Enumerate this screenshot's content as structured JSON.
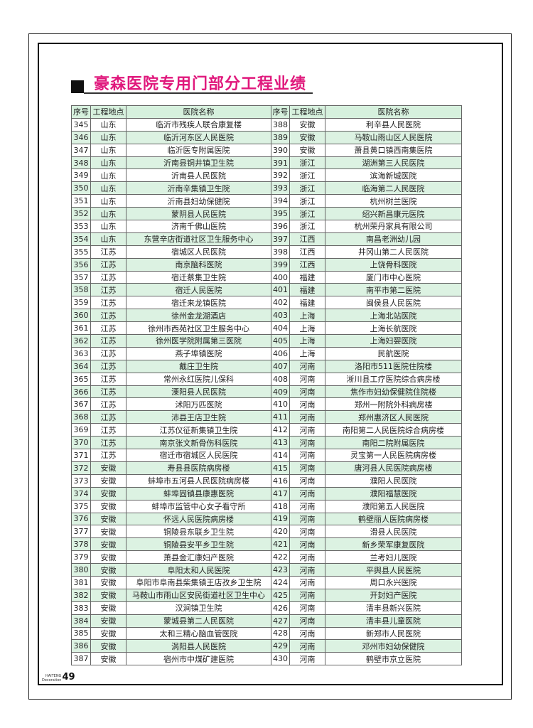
{
  "title": "豪森医院专用门部分工程业绩",
  "table": {
    "headers": [
      "序号",
      "工程地点",
      "医院名称",
      "序号",
      "工程地点",
      "医院名称"
    ],
    "rows": [
      [
        "345",
        "山东",
        "临沂市残疾人联合康复楼",
        "388",
        "安徽",
        "利辛县人民医院"
      ],
      [
        "346",
        "山东",
        "临沂河东区人民医院",
        "389",
        "安徽",
        "马鞍山雨山区人民医院"
      ],
      [
        "347",
        "山东",
        "临沂医专附属医院",
        "390",
        "安徽",
        "萧县黄口镇西南集医院"
      ],
      [
        "348",
        "山东",
        "沂南县铜井镇卫生院",
        "391",
        "浙江",
        "湖洲第三人民医院"
      ],
      [
        "349",
        "山东",
        "沂南县人民医院",
        "392",
        "浙江",
        "滨海新城医院"
      ],
      [
        "350",
        "山东",
        "沂南辛集镇卫生院",
        "393",
        "浙江",
        "临海第二人民医院"
      ],
      [
        "351",
        "山东",
        "沂南县妇幼保健院",
        "394",
        "浙江",
        "杭州树兰医院"
      ],
      [
        "352",
        "山东",
        "蒙阴县人民医院",
        "395",
        "浙江",
        "绍兴新昌康元医院"
      ],
      [
        "353",
        "山东",
        "济南千佛山医院",
        "396",
        "浙江",
        "杭州荣丹家具有限公司"
      ],
      [
        "354",
        "山东",
        "东营辛店街道社区卫生服务中心",
        "397",
        "江西",
        "南昌老洲幼儿园"
      ],
      [
        "355",
        "江苏",
        "宿城区人民医院",
        "398",
        "江西",
        "井冈山第二人民医院"
      ],
      [
        "356",
        "江苏",
        "南京脑科医院",
        "399",
        "江西",
        "上饶骨科医院"
      ],
      [
        "357",
        "江苏",
        "宿迁蔡集卫生院",
        "400",
        "福建",
        "厦门市中心医院"
      ],
      [
        "358",
        "江苏",
        "宿迁人民医院",
        "401",
        "福建",
        "南平市第二医院"
      ],
      [
        "359",
        "江苏",
        "宿迁来龙镇医院",
        "402",
        "福建",
        "闽侯县人民医院"
      ],
      [
        "360",
        "江苏",
        "徐州金龙湖酒店",
        "403",
        "上海",
        "上海北站医院"
      ],
      [
        "361",
        "江苏",
        "徐州市西苑社区卫生服务中心",
        "404",
        "上海",
        "上海长航医院"
      ],
      [
        "362",
        "江苏",
        "徐州医学院附属第三医院",
        "405",
        "上海",
        "上海妇婴医院"
      ],
      [
        "363",
        "江苏",
        "燕子埠镇医院",
        "406",
        "上海",
        "民航医院"
      ],
      [
        "364",
        "江苏",
        "戴庄卫生院",
        "407",
        "河南",
        "洛阳市511医院住院楼"
      ],
      [
        "365",
        "江苏",
        "常州永红医院儿保科",
        "408",
        "河南",
        "淅川县工疗医院综合病房楼"
      ],
      [
        "366",
        "江苏",
        "溧阳县人民医院",
        "409",
        "河南",
        "焦作市妇幼保健院住院楼"
      ],
      [
        "367",
        "江苏",
        "沭阳万匹医院",
        "410",
        "河南",
        "郑州一附院外科病房楼"
      ],
      [
        "368",
        "江苏",
        "沛县王店卫生院",
        "411",
        "河南",
        "郑州惠济区人民医院"
      ],
      [
        "369",
        "江苏",
        "江苏仪征新集镇卫生院",
        "412",
        "河南",
        "南阳第二人民医院综合病房楼"
      ],
      [
        "370",
        "江苏",
        "南京张文新骨伤科医院",
        "413",
        "河南",
        "南阳二院附属医院"
      ],
      [
        "371",
        "江苏",
        "宿迁市宿城区人民医院",
        "414",
        "河南",
        "灵宝第一人民医院病房楼"
      ],
      [
        "372",
        "安徽",
        "寿县县医院病房楼",
        "415",
        "河南",
        "唐河县人民医院病房楼"
      ],
      [
        "373",
        "安徽",
        "蚌埠市五河县人民医院病房楼",
        "416",
        "河南",
        "濮阳人民医院"
      ],
      [
        "374",
        "安徽",
        "蚌埠固镇县康惠医院",
        "417",
        "河南",
        "濮阳福慧医院"
      ],
      [
        "375",
        "安徽",
        "蚌埠市监管中心女子看守所",
        "418",
        "河南",
        "濮阳第五人民医院"
      ],
      [
        "376",
        "安徽",
        "怀远人民医院病房楼",
        "419",
        "河南",
        "鹤壁丽人医院病房楼"
      ],
      [
        "377",
        "安徽",
        "铜陵县东联乡卫生院",
        "420",
        "河南",
        "滑县人民医院"
      ],
      [
        "378",
        "安徽",
        "铜陵县安平乡卫生院",
        "421",
        "河南",
        "新乡荣军康复医院"
      ],
      [
        "379",
        "安徽",
        "萧县金汇康妇产医院",
        "422",
        "河南",
        "兰考妇儿医院"
      ],
      [
        "380",
        "安徽",
        "阜阳太和人民医院",
        "423",
        "河南",
        "平舆县人民医院"
      ],
      [
        "381",
        "安徽",
        "阜阳市阜南县柴集镇王店孜乡卫生院",
        "424",
        "河南",
        "周口永兴医院"
      ],
      [
        "382",
        "安徽",
        "马鞍山市雨山区安民街道社区卫生中心",
        "425",
        "河南",
        "开封妇产医院"
      ],
      [
        "383",
        "安徽",
        "汉涧镇卫生院",
        "426",
        "河南",
        "清丰县新兴医院"
      ],
      [
        "384",
        "安徽",
        "蒙城县第二人民医院",
        "427",
        "河南",
        "清丰县儿童医院"
      ],
      [
        "385",
        "安徽",
        "太和三精心脑血管医院",
        "428",
        "河南",
        "新郑市人民医院"
      ],
      [
        "386",
        "安徽",
        "涡阳县人民医院",
        "429",
        "河南",
        "邓州市妇幼保健院"
      ],
      [
        "387",
        "安徽",
        "宿州市中煤矿建医院",
        "430",
        "河南",
        "鹤壁市京立医院"
      ]
    ]
  },
  "footer": {
    "brand_line1": "HAITENG",
    "brand_line2": "Decoration",
    "page_number": "49"
  },
  "colors": {
    "title": "#e0187c",
    "row_alt": "#dcf2e2",
    "header": "#d6f0dd"
  }
}
